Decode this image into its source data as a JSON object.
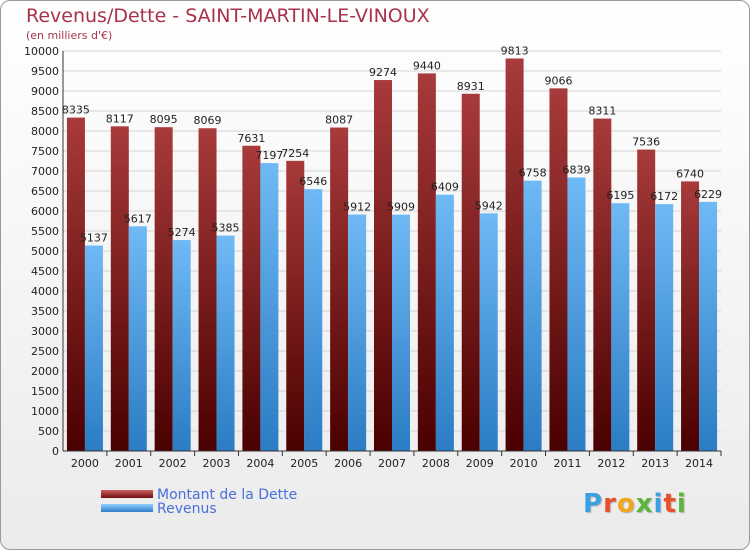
{
  "title": "Revenus/Dette - SAINT-MARTIN-LE-VINOUX",
  "subtitle": "(en milliers d'€)",
  "logo_text": "Proxiti",
  "colors": {
    "debt_top": "#a83a3a",
    "debt_bottom": "#4a0000",
    "revenue_top": "#6fb9f5",
    "revenue_bottom": "#2b7cc4",
    "title": "#a8324a",
    "legend_text": "#4a6fd8"
  },
  "chart_data": {
    "type": "bar",
    "categories": [
      "2000",
      "2001",
      "2002",
      "2003",
      "2004",
      "2005",
      "2006",
      "2007",
      "2008",
      "2009",
      "2010",
      "2011",
      "2012",
      "2013",
      "2014"
    ],
    "series": [
      {
        "name": "Montant de la Dette",
        "values": [
          8335,
          8117,
          8095,
          8069,
          7631,
          7254,
          8087,
          9274,
          9440,
          8931,
          9813,
          9066,
          8311,
          7536,
          6740
        ]
      },
      {
        "name": "Revenus",
        "values": [
          5137,
          5617,
          5274,
          5385,
          7197,
          6546,
          5912,
          5909,
          6409,
          5942,
          6758,
          6839,
          6195,
          6172,
          6229
        ]
      }
    ],
    "yticks": [
      0,
      500,
      1000,
      1500,
      2000,
      2500,
      3000,
      3500,
      4000,
      4500,
      5000,
      5500,
      6000,
      6500,
      7000,
      7500,
      8000,
      8500,
      9000,
      9500,
      10000
    ],
    "ylim": [
      0,
      10000
    ],
    "xlabel": "",
    "ylabel": "",
    "grid": true,
    "legend_position": "bottom-left"
  }
}
